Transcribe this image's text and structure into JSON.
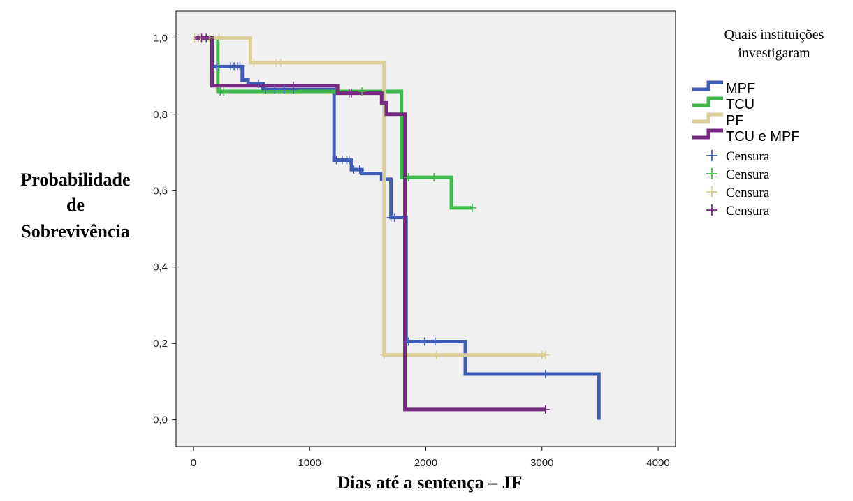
{
  "chart_data": {
    "type": "line",
    "step": true,
    "xlabel": "Dias até a sentença – JF",
    "ylabel_lines": [
      "Probabilidade",
      "de",
      "Sobrevivência"
    ],
    "xlim": [
      -150,
      4150
    ],
    "ylim": [
      -0.07,
      1.07
    ],
    "xticks": [
      0,
      1000,
      2000,
      3000,
      4000
    ],
    "yticks": [
      0.0,
      0.2,
      0.4,
      0.6,
      0.8,
      1.0
    ],
    "ytick_labels": [
      "0,0",
      "0,2",
      "0,4",
      "0,6",
      "0,8",
      "1,0"
    ],
    "plot_background": "#f0f0f0",
    "legend": {
      "title_lines": [
        "Quais instituições",
        "investigaram"
      ],
      "placement": "right"
    },
    "series": [
      {
        "name": "MPF",
        "color": "#3f5bb3",
        "steps": [
          [
            0,
            1.0
          ],
          [
            160,
            0.925
          ],
          [
            420,
            0.89
          ],
          [
            470,
            0.88
          ],
          [
            600,
            0.865
          ],
          [
            1210,
            0.68
          ],
          [
            1360,
            0.655
          ],
          [
            1450,
            0.645
          ],
          [
            1620,
            0.63
          ],
          [
            1700,
            0.53
          ],
          [
            1830,
            0.205
          ],
          [
            2340,
            0.12
          ],
          [
            3490,
            0.0
          ]
        ],
        "censor_x": [
          200,
          320,
          350,
          380,
          400,
          560,
          620,
          700,
          780,
          860,
          1230,
          1280,
          1320,
          1340,
          1380,
          1430,
          1700,
          1730,
          1850,
          1990,
          2080,
          3030
        ]
      },
      {
        "name": "TCU",
        "color": "#3cb84a",
        "steps": [
          [
            0,
            1.0
          ],
          [
            210,
            0.86
          ],
          [
            1790,
            0.635
          ],
          [
            2220,
            0.555
          ],
          [
            2400,
            0.555
          ]
        ],
        "censor_x": [
          230,
          260,
          1450,
          1850,
          2070,
          2400
        ]
      },
      {
        "name": "PF",
        "color": "#d9cf97",
        "steps": [
          [
            0,
            1.0
          ],
          [
            490,
            0.935
          ],
          [
            1640,
            0.17
          ],
          [
            3030,
            0.17
          ]
        ],
        "censor_x": [
          10,
          60,
          110,
          140,
          220,
          520,
          710,
          750,
          1640,
          2090,
          3000,
          3030
        ]
      },
      {
        "name": "TCU e MPF",
        "color": "#74287f",
        "steps": [
          [
            0,
            1.0
          ],
          [
            160,
            0.875
          ],
          [
            1240,
            0.855
          ],
          [
            1620,
            0.83
          ],
          [
            1660,
            0.8
          ],
          [
            1820,
            0.027
          ],
          [
            3030,
            0.027
          ]
        ],
        "censor_x": [
          40,
          70,
          110,
          860,
          1340,
          1360,
          3030
        ]
      }
    ],
    "censor_legend": [
      {
        "label": "Censura",
        "color": "#3f5bb3"
      },
      {
        "label": "Censura",
        "color": "#3cb84a"
      },
      {
        "label": "Censura",
        "color": "#d9cf97"
      },
      {
        "label": "Censura",
        "color": "#74287f"
      }
    ]
  }
}
